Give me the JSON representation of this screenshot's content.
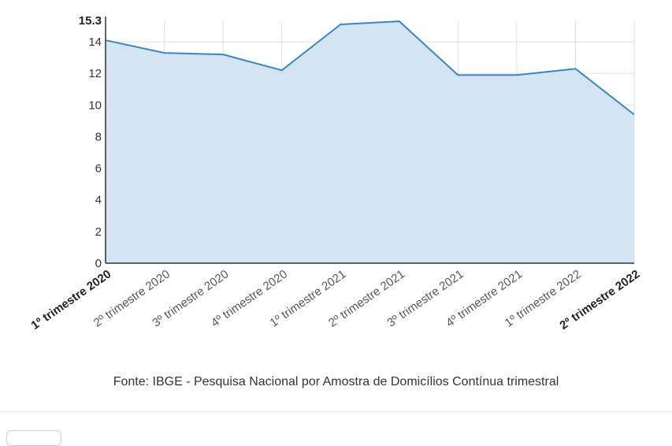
{
  "chart_data": {
    "type": "area",
    "categories": [
      "1º trimestre 2020",
      "2º trimestre 2020",
      "3º trimestre 2020",
      "4º trimestre 2020",
      "1º trimestre 2021",
      "2º trimestre 2021",
      "3º trimestre 2021",
      "4º trimestre 2021",
      "1º trimestre 2022",
      "2º trimestre 2022"
    ],
    "bold_categories": [
      "1º trimestre 2020",
      "2º trimestre 2022"
    ],
    "values": [
      14.1,
      13.3,
      13.2,
      12.2,
      15.1,
      15.3,
      11.9,
      11.9,
      12.3,
      9.4
    ],
    "y_ticks": [
      0,
      2,
      4,
      6,
      8,
      10,
      12,
      14
    ],
    "y_max_label": "15.3",
    "ylim": [
      0,
      15.3
    ],
    "grid": true,
    "colors": {
      "line": "#3a87c0",
      "fill": "#d4e4f2",
      "grid": "#dddddd"
    }
  },
  "source_text": "Fonte: IBGE - Pesquisa Nacional por Amostra de Domicílios Contínua trimestral"
}
